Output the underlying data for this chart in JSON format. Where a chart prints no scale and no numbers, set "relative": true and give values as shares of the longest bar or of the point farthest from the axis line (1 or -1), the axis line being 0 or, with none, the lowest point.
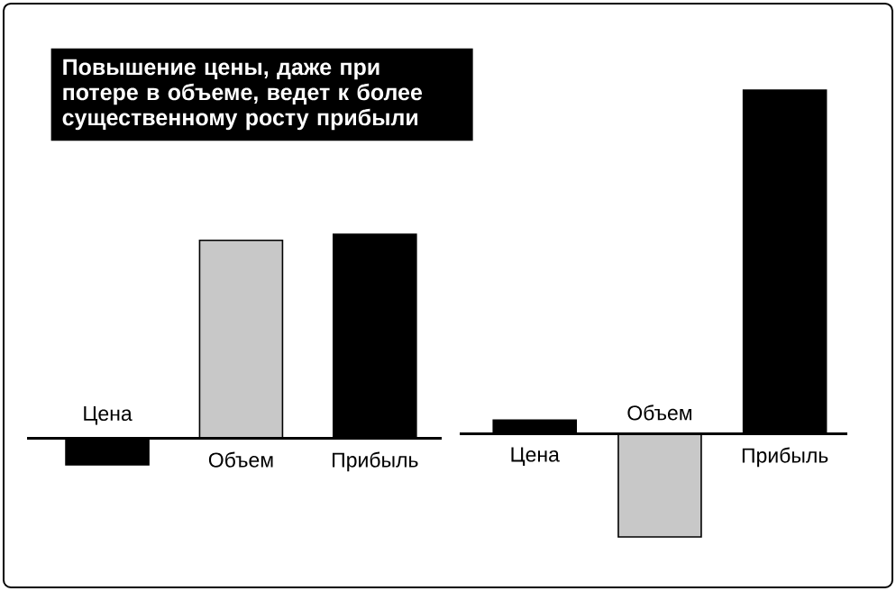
{
  "chart_data": [
    {
      "type": "bar",
      "title": "Повышение цены, даже при потере в объеме, ведет к более существенному росту прибыли",
      "relative": true,
      "categories": [
        "Цена",
        "Объем",
        "Прибыль"
      ],
      "values": [
        -0.13,
        0.97,
        1
      ],
      "colors": [
        "#000000",
        "#c8c8c8",
        "#000000"
      ]
    },
    {
      "type": "bar",
      "relative": true,
      "categories": [
        "Цена",
        "Объем",
        "Прибыль"
      ],
      "values": [
        0.04,
        -0.3,
        1
      ],
      "colors": [
        "#000000",
        "#c8c8c8",
        "#000000"
      ]
    }
  ]
}
